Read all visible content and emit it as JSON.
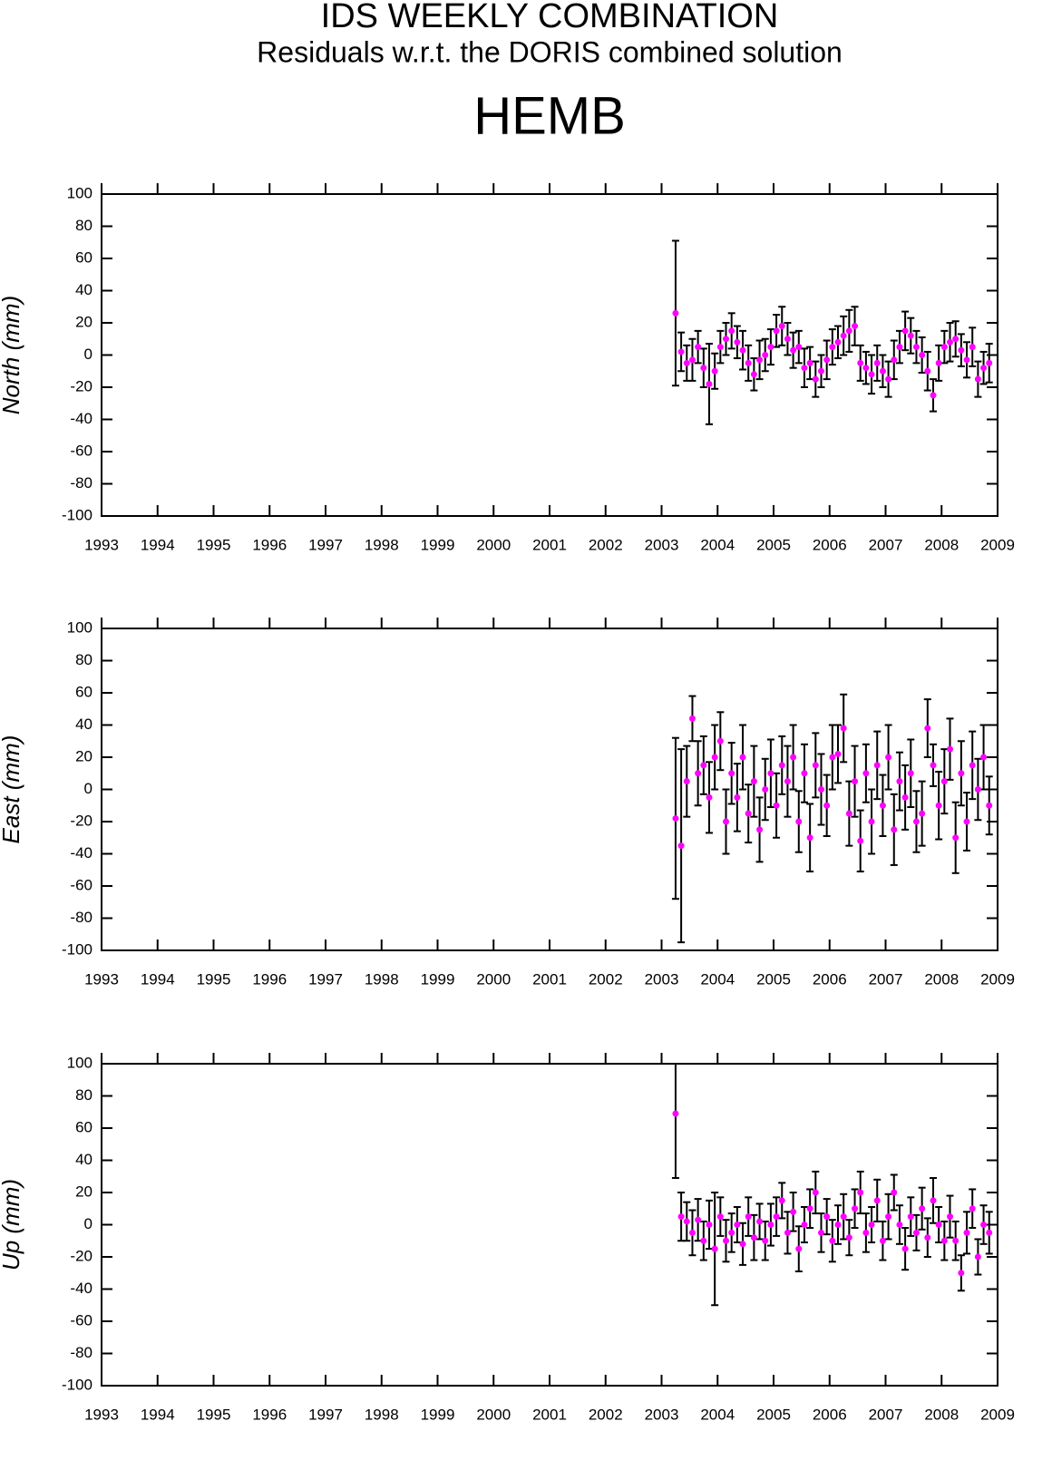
{
  "header": {
    "title": "IDS WEEKLY COMBINATION",
    "subtitle": "Residuals w.r.t. the DORIS combined solution",
    "station": "HEMB"
  },
  "chart_data": [
    {
      "type": "scatter",
      "ylabel": "North (mm)",
      "color": "#ff00ff",
      "error_color": "#000000",
      "xlim": [
        1993,
        2009
      ],
      "xticks": [
        1993,
        1994,
        1995,
        1996,
        1997,
        1998,
        1999,
        2000,
        2001,
        2002,
        2003,
        2004,
        2005,
        2006,
        2007,
        2008,
        2009
      ],
      "ylim": [
        -100,
        100
      ],
      "yticks": [
        -100,
        -80,
        -60,
        -40,
        -20,
        0,
        20,
        40,
        60,
        80,
        100
      ],
      "x": [
        2003.25,
        2003.35,
        2003.45,
        2003.55,
        2003.65,
        2003.75,
        2003.85,
        2003.95,
        2004.05,
        2004.15,
        2004.25,
        2004.35,
        2004.45,
        2004.55,
        2004.65,
        2004.75,
        2004.85,
        2004.95,
        2005.05,
        2005.15,
        2005.25,
        2005.35,
        2005.45,
        2005.55,
        2005.65,
        2005.75,
        2005.85,
        2005.95,
        2006.05,
        2006.15,
        2006.25,
        2006.35,
        2006.45,
        2006.55,
        2006.65,
        2006.75,
        2006.85,
        2006.95,
        2007.05,
        2007.15,
        2007.25,
        2007.35,
        2007.45,
        2007.55,
        2007.65,
        2007.75,
        2007.85,
        2007.95,
        2008.05,
        2008.15,
        2008.25,
        2008.35,
        2008.45,
        2008.55,
        2008.65,
        2008.75,
        2008.85
      ],
      "values": [
        26,
        2,
        -5,
        -3,
        5,
        -8,
        -18,
        -10,
        5,
        10,
        15,
        8,
        3,
        -5,
        -12,
        -3,
        0,
        5,
        15,
        18,
        10,
        3,
        5,
        -8,
        -5,
        -15,
        -10,
        -3,
        5,
        8,
        12,
        15,
        18,
        -5,
        -8,
        -12,
        -5,
        -10,
        -15,
        -3,
        5,
        15,
        12,
        5,
        0,
        -10,
        -25,
        -5,
        5,
        8,
        10,
        3,
        -3,
        5,
        -15,
        -8,
        -5
      ],
      "errors": [
        45,
        12,
        11,
        13,
        10,
        12,
        25,
        11,
        10,
        10,
        11,
        10,
        12,
        11,
        10,
        12,
        10,
        11,
        10,
        12,
        10,
        11,
        10,
        12,
        10,
        11,
        10,
        12,
        11,
        10,
        12,
        13,
        12,
        11,
        10,
        12,
        11,
        10,
        11,
        12,
        10,
        12,
        11,
        10,
        11,
        12,
        10,
        11,
        10,
        12,
        11,
        10,
        11,
        12,
        11,
        10,
        12
      ]
    },
    {
      "type": "scatter",
      "ylabel": "East (mm)",
      "color": "#ff00ff",
      "error_color": "#000000",
      "xlim": [
        1993,
        2009
      ],
      "xticks": [
        1993,
        1994,
        1995,
        1996,
        1997,
        1998,
        1999,
        2000,
        2001,
        2002,
        2003,
        2004,
        2005,
        2006,
        2007,
        2008,
        2009
      ],
      "ylim": [
        -100,
        100
      ],
      "yticks": [
        -100,
        -80,
        -60,
        -40,
        -20,
        0,
        20,
        40,
        60,
        80,
        100
      ],
      "x": [
        2003.25,
        2003.35,
        2003.45,
        2003.55,
        2003.65,
        2003.75,
        2003.85,
        2003.95,
        2004.05,
        2004.15,
        2004.25,
        2004.35,
        2004.45,
        2004.55,
        2004.65,
        2004.75,
        2004.85,
        2004.95,
        2005.05,
        2005.15,
        2005.25,
        2005.35,
        2005.45,
        2005.55,
        2005.65,
        2005.75,
        2005.85,
        2005.95,
        2006.05,
        2006.15,
        2006.25,
        2006.35,
        2006.45,
        2006.55,
        2006.65,
        2006.75,
        2006.85,
        2006.95,
        2007.05,
        2007.15,
        2007.25,
        2007.35,
        2007.45,
        2007.55,
        2007.65,
        2007.75,
        2007.85,
        2007.95,
        2008.05,
        2008.15,
        2008.25,
        2008.35,
        2008.45,
        2008.55,
        2008.65,
        2008.75,
        2008.85
      ],
      "values": [
        -18,
        -35,
        5,
        44,
        10,
        15,
        -5,
        20,
        30,
        -20,
        10,
        -5,
        20,
        -15,
        5,
        -25,
        0,
        10,
        -10,
        15,
        5,
        20,
        -20,
        10,
        -30,
        15,
        0,
        -10,
        20,
        22,
        38,
        -15,
        5,
        -32,
        10,
        -20,
        15,
        -10,
        20,
        -25,
        5,
        -5,
        10,
        -20,
        -15,
        38,
        15,
        -10,
        5,
        25,
        -30,
        10,
        -20,
        15,
        0,
        20,
        -10
      ],
      "errors": [
        50,
        60,
        22,
        14,
        20,
        18,
        22,
        20,
        18,
        20,
        19,
        21,
        20,
        18,
        22,
        20,
        19,
        21,
        20,
        18,
        22,
        20,
        19,
        18,
        21,
        20,
        22,
        19,
        20,
        18,
        21,
        20,
        22,
        19,
        18,
        20,
        21,
        19,
        20,
        22,
        18,
        20,
        21,
        19,
        20,
        18,
        13,
        21,
        20,
        19,
        22,
        20,
        18,
        21,
        19,
        20,
        18
      ]
    },
    {
      "type": "scatter",
      "ylabel": "Up (mm)",
      "color": "#ff00ff",
      "error_color": "#000000",
      "xlim": [
        1993,
        2009
      ],
      "xticks": [
        1993,
        1994,
        1995,
        1996,
        1997,
        1998,
        1999,
        2000,
        2001,
        2002,
        2003,
        2004,
        2005,
        2006,
        2007,
        2008,
        2009
      ],
      "ylim": [
        -100,
        100
      ],
      "yticks": [
        -100,
        -80,
        -60,
        -40,
        -20,
        0,
        20,
        40,
        60,
        80,
        100
      ],
      "x": [
        2003.25,
        2003.35,
        2003.45,
        2003.55,
        2003.65,
        2003.75,
        2003.85,
        2003.95,
        2004.05,
        2004.15,
        2004.25,
        2004.35,
        2004.45,
        2004.55,
        2004.65,
        2004.75,
        2004.85,
        2004.95,
        2005.05,
        2005.15,
        2005.25,
        2005.35,
        2005.45,
        2005.55,
        2005.65,
        2005.75,
        2005.85,
        2005.95,
        2006.05,
        2006.15,
        2006.25,
        2006.35,
        2006.45,
        2006.55,
        2006.65,
        2006.75,
        2006.85,
        2006.95,
        2007.05,
        2007.15,
        2007.25,
        2007.35,
        2007.45,
        2007.55,
        2007.65,
        2007.75,
        2007.85,
        2007.95,
        2008.05,
        2008.15,
        2008.25,
        2008.35,
        2008.45,
        2008.55,
        2008.65,
        2008.75,
        2008.85
      ],
      "values": [
        69,
        5,
        2,
        -5,
        3,
        -10,
        0,
        -15,
        5,
        -10,
        -5,
        0,
        -12,
        5,
        -8,
        2,
        -10,
        0,
        5,
        15,
        -5,
        8,
        -15,
        0,
        10,
        20,
        -5,
        5,
        -10,
        0,
        5,
        -8,
        10,
        20,
        -5,
        0,
        15,
        -10,
        5,
        20,
        0,
        -15,
        5,
        -5,
        10,
        -8,
        15,
        0,
        -10,
        5,
        -10,
        -30,
        -5,
        10,
        -20,
        0,
        -5
      ],
      "errors": [
        40,
        15,
        12,
        14,
        13,
        12,
        15,
        35,
        12,
        13,
        12,
        11,
        13,
        12,
        14,
        11,
        12,
        13,
        12,
        11,
        13,
        12,
        14,
        11,
        12,
        13,
        12,
        11,
        13,
        12,
        14,
        11,
        12,
        13,
        12,
        11,
        13,
        12,
        14,
        11,
        12,
        13,
        12,
        11,
        13,
        12,
        14,
        11,
        12,
        13,
        12,
        11,
        13,
        12,
        11,
        12,
        13
      ]
    }
  ]
}
